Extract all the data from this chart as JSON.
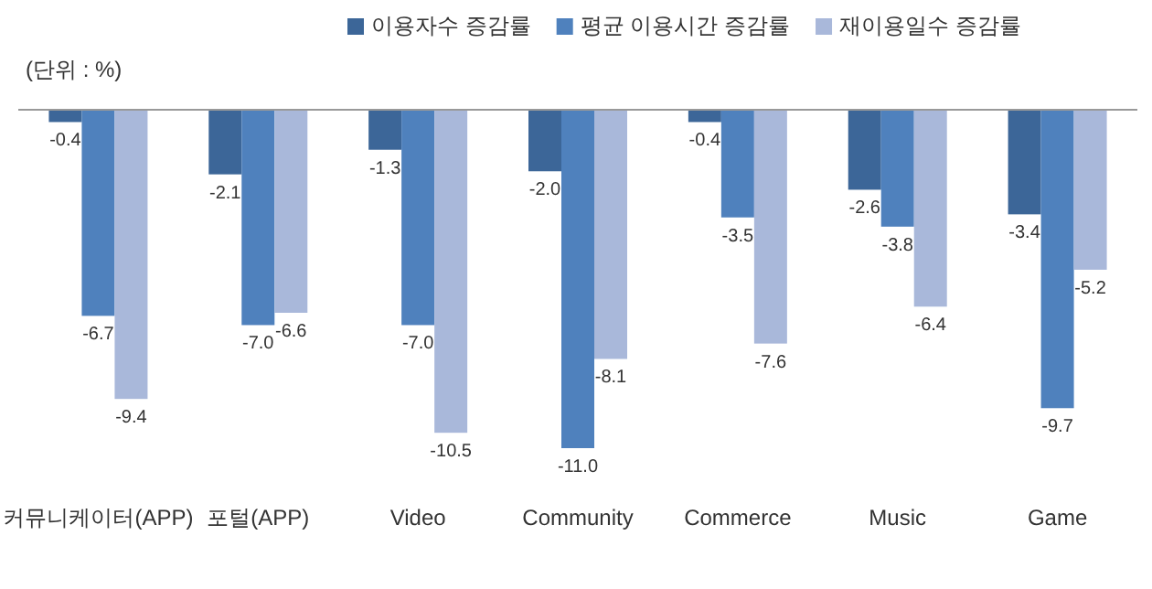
{
  "chart_data": {
    "type": "bar",
    "categories": [
      "커뮤니케이터(APP)",
      "포털(APP)",
      "Video",
      "Community",
      "Commerce",
      "Music",
      "Game"
    ],
    "series": [
      {
        "name": "이용자수 증감률",
        "color": "#3c6698",
        "values": [
          -0.4,
          -2.1,
          -1.3,
          -2.0,
          -0.4,
          -2.6,
          -3.4
        ],
        "value_labels": [
          "-0.4",
          "-2.1",
          "-1.3",
          "-2.0",
          "-0.4",
          "-2.6",
          "-3.4"
        ]
      },
      {
        "name": "평균 이용시간 증감률",
        "color": "#4f81bd",
        "values": [
          -6.7,
          -7.0,
          -7.0,
          -11.0,
          -3.5,
          -3.8,
          -9.7
        ],
        "value_labels": [
          "-6.7",
          "-7.0",
          "-7.0",
          "-11.0",
          "-3.5",
          "-3.8",
          "-9.7"
        ]
      },
      {
        "name": "재이용일수 증감률",
        "color": "#a9b8da",
        "values": [
          -9.4,
          -6.6,
          -10.5,
          -8.1,
          -7.6,
          -6.4,
          -5.2
        ],
        "value_labels": [
          "-9.4",
          "-6.6",
          "-10.5",
          "-8.1",
          "-7.6",
          "-6.4",
          "-5.2"
        ]
      }
    ],
    "annotations": [
      "(단위 : %)"
    ],
    "legend": "top"
  }
}
